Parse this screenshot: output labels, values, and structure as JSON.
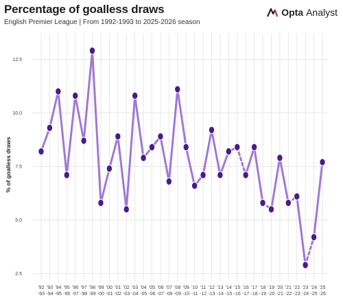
{
  "header": {
    "title": "Percentage of goalless draws",
    "subtitle": "English Premier League | From 1992-1993 to 2025-2026 season",
    "brand_strong": "Opta",
    "brand_light": "Analyst"
  },
  "colors": {
    "line": "#9f78d6",
    "marker": "#4b1a8e",
    "grid": "#e6e6e6",
    "brand_accent": "#e8344a"
  },
  "chart_data": {
    "type": "line",
    "title": "Percentage of goalless draws",
    "subtitle": "English Premier League | From 1992-1993 to 2025-2026 season",
    "xlabel": "",
    "ylabel": "% of goalless draws",
    "ylim": [
      2.2,
      13.6
    ],
    "yticks": [
      2.5,
      5.0,
      7.5,
      10.0,
      12.5
    ],
    "ytick_labels": [
      "2.5",
      "5.0",
      "7.5",
      "10.0",
      "12.5"
    ],
    "grid": "vertical",
    "categories": [
      [
        "'92",
        "-93"
      ],
      [
        "'93",
        "-94"
      ],
      [
        "'94",
        "-95"
      ],
      [
        "'95",
        "-96"
      ],
      [
        "'96",
        "-97"
      ],
      [
        "'97",
        "-98"
      ],
      [
        "'98",
        "-99"
      ],
      [
        "'99",
        "-00"
      ],
      [
        "'00",
        "-01"
      ],
      [
        "'01",
        "-02"
      ],
      [
        "'02",
        "-03"
      ],
      [
        "'03",
        "-04"
      ],
      [
        "'04",
        "-05"
      ],
      [
        "'05",
        "-06"
      ],
      [
        "'06",
        "-07"
      ],
      [
        "'07",
        "-08"
      ],
      [
        "'08",
        "-09"
      ],
      [
        "'09",
        "-10"
      ],
      [
        "'10",
        "-11"
      ],
      [
        "'11",
        "-12"
      ],
      [
        "'12",
        "-13"
      ],
      [
        "'13",
        "-14"
      ],
      [
        "'14",
        "-15"
      ],
      [
        "'15",
        "-16"
      ],
      [
        "'16",
        "-17"
      ],
      [
        "'17",
        "-18"
      ],
      [
        "'18",
        "-19"
      ],
      [
        "'19",
        "-20"
      ],
      [
        "'20",
        "-21"
      ],
      [
        "'21",
        "-22"
      ],
      [
        "'22",
        "-23"
      ],
      [
        "'23",
        "-24"
      ],
      [
        "'24",
        "-25"
      ],
      [
        "'25",
        "-26"
      ]
    ],
    "values": [
      8.2,
      9.3,
      11.0,
      7.1,
      10.8,
      8.7,
      12.9,
      5.8,
      7.4,
      8.9,
      5.5,
      10.8,
      7.9,
      8.4,
      8.9,
      6.8,
      11.1,
      8.4,
      6.6,
      7.1,
      9.2,
      7.1,
      8.2,
      8.4,
      7.1,
      8.4,
      5.8,
      5.5,
      7.9,
      5.8,
      6.1,
      2.9,
      4.2,
      7.7
    ],
    "dashed_segments": [
      [
        12,
        14
      ],
      [
        23,
        24
      ],
      [
        26,
        27
      ],
      [
        29,
        30
      ],
      [
        31,
        32
      ]
    ]
  }
}
